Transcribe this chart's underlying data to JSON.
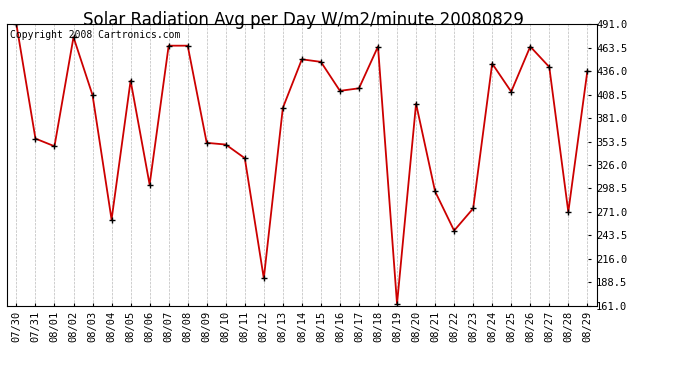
{
  "title": "Solar Radiation Avg per Day W/m2/minute 20080829",
  "copyright_text": "Copyright 2008 Cartronics.com",
  "dates": [
    "07/30",
    "07/31",
    "08/01",
    "08/02",
    "08/03",
    "08/04",
    "08/05",
    "08/06",
    "08/07",
    "08/08",
    "08/09",
    "08/10",
    "08/11",
    "08/12",
    "08/13",
    "08/14",
    "08/15",
    "08/16",
    "08/17",
    "08/18",
    "08/19",
    "08/20",
    "08/21",
    "08/22",
    "08/23",
    "08/24",
    "08/25",
    "08/26",
    "08/27",
    "08/28",
    "08/29"
  ],
  "values": [
    491,
    357,
    348,
    476,
    408,
    262,
    425,
    303,
    466,
    466,
    352,
    350,
    334,
    193,
    393,
    450,
    447,
    413,
    416,
    465,
    163,
    398,
    295,
    249,
    275,
    445,
    412,
    465,
    441,
    271,
    436
  ],
  "line_color": "#cc0000",
  "marker_color": "#000000",
  "bg_color": "#ffffff",
  "plot_bg_color": "#ffffff",
  "grid_color": "#bbbbbb",
  "title_fontsize": 12,
  "copyright_fontsize": 7,
  "tick_fontsize": 7.5,
  "ylim_min": 161.0,
  "ylim_max": 491.0,
  "yticks": [
    161.0,
    188.5,
    216.0,
    243.5,
    271.0,
    298.5,
    326.0,
    353.5,
    381.0,
    408.5,
    436.0,
    463.5,
    491.0
  ]
}
